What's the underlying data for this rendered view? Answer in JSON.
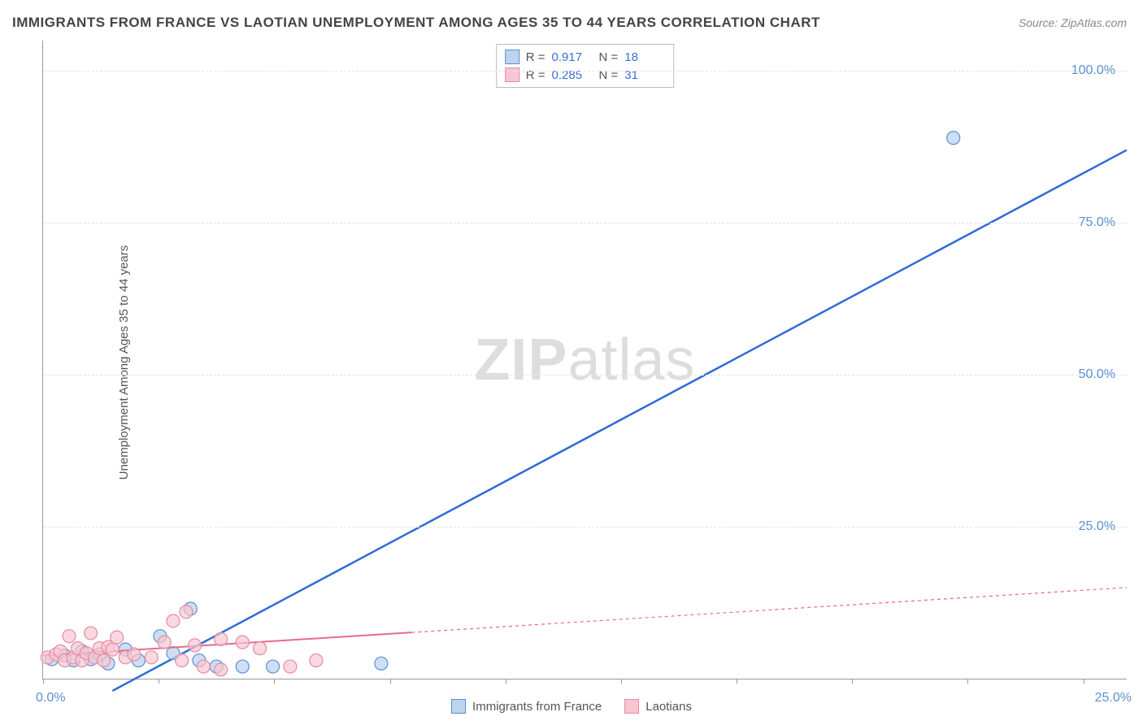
{
  "title": "IMMIGRANTS FROM FRANCE VS LAOTIAN UNEMPLOYMENT AMONG AGES 35 TO 44 YEARS CORRELATION CHART",
  "source": "Source: ZipAtlas.com",
  "ylabel": "Unemployment Among Ages 35 to 44 years",
  "watermark_bold": "ZIP",
  "watermark_rest": "atlas",
  "chart": {
    "type": "scatter-with-regression",
    "xlim": [
      0,
      25
    ],
    "ylim": [
      0,
      105
    ],
    "xtick_positions": [
      0,
      2.67,
      5.33,
      8,
      10.67,
      13.33,
      16,
      18.67,
      21.33,
      24
    ],
    "xtick_labels": {
      "0": "0.0%",
      "24": "25.0%"
    },
    "ytick_positions": [
      25,
      50,
      75,
      100
    ],
    "ytick_labels": [
      "25.0%",
      "50.0%",
      "75.0%",
      "100.0%"
    ],
    "grid_color": "#e5e5e5",
    "background_color": "#ffffff",
    "axis_color": "#999999",
    "series": [
      {
        "name": "Immigrants from France",
        "label": "Immigrants from France",
        "marker_fill": "#bcd4ee",
        "marker_stroke": "#5b8fd6",
        "marker_opacity": 0.75,
        "marker_radius": 8,
        "line_color": "#2e6bd6",
        "line_width": 2.5,
        "line_dash": "none",
        "R": "0.917",
        "N": "18",
        "regression": {
          "x1": 1.6,
          "y1": -2,
          "x2": 25,
          "y2": 87
        },
        "points": [
          {
            "x": 0.2,
            "y": 3.2
          },
          {
            "x": 0.5,
            "y": 3.8
          },
          {
            "x": 0.7,
            "y": 3.0
          },
          {
            "x": 0.9,
            "y": 4.5
          },
          {
            "x": 1.1,
            "y": 3.2
          },
          {
            "x": 1.3,
            "y": 4.0
          },
          {
            "x": 1.5,
            "y": 2.5
          },
          {
            "x": 1.9,
            "y": 4.8
          },
          {
            "x": 2.2,
            "y": 3.0
          },
          {
            "x": 2.7,
            "y": 7.0
          },
          {
            "x": 3.0,
            "y": 4.2
          },
          {
            "x": 3.4,
            "y": 11.5
          },
          {
            "x": 3.6,
            "y": 3.0
          },
          {
            "x": 4.0,
            "y": 2.0
          },
          {
            "x": 4.6,
            "y": 2.0
          },
          {
            "x": 5.3,
            "y": 2.0
          },
          {
            "x": 7.8,
            "y": 2.5
          },
          {
            "x": 21.0,
            "y": 89.0
          }
        ]
      },
      {
        "name": "Laotians",
        "label": "Laotians",
        "marker_fill": "#f6c7d2",
        "marker_stroke": "#e78aa3",
        "marker_opacity": 0.7,
        "marker_radius": 8,
        "line_color": "#e56b8a",
        "line_width": 2,
        "line_dash": "4,4",
        "solid_until_x": 8.5,
        "R": "0.285",
        "N": "31",
        "regression": {
          "x1": 0,
          "y1": 3.8,
          "x2": 25,
          "y2": 15
        },
        "points": [
          {
            "x": 0.1,
            "y": 3.5
          },
          {
            "x": 0.3,
            "y": 4.0
          },
          {
            "x": 0.4,
            "y": 4.5
          },
          {
            "x": 0.5,
            "y": 3.0
          },
          {
            "x": 0.6,
            "y": 7.0
          },
          {
            "x": 0.7,
            "y": 3.5
          },
          {
            "x": 0.8,
            "y": 5.0
          },
          {
            "x": 0.9,
            "y": 3.0
          },
          {
            "x": 1.0,
            "y": 4.2
          },
          {
            "x": 1.1,
            "y": 7.5
          },
          {
            "x": 1.2,
            "y": 3.5
          },
          {
            "x": 1.3,
            "y": 5.0
          },
          {
            "x": 1.4,
            "y": 3.0
          },
          {
            "x": 1.5,
            "y": 5.2
          },
          {
            "x": 1.6,
            "y": 4.8
          },
          {
            "x": 1.7,
            "y": 6.8
          },
          {
            "x": 1.9,
            "y": 3.5
          },
          {
            "x": 2.1,
            "y": 4.0
          },
          {
            "x": 2.5,
            "y": 3.5
          },
          {
            "x": 2.8,
            "y": 6.0
          },
          {
            "x": 3.0,
            "y": 9.5
          },
          {
            "x": 3.2,
            "y": 3.0
          },
          {
            "x": 3.3,
            "y": 11.0
          },
          {
            "x": 3.5,
            "y": 5.5
          },
          {
            "x": 3.7,
            "y": 2.0
          },
          {
            "x": 4.1,
            "y": 6.5
          },
          {
            "x": 4.1,
            "y": 1.5
          },
          {
            "x": 4.6,
            "y": 6.0
          },
          {
            "x": 5.0,
            "y": 5.0
          },
          {
            "x": 5.7,
            "y": 2.0
          },
          {
            "x": 6.3,
            "y": 3.0
          }
        ]
      }
    ]
  },
  "legend_bottom": [
    {
      "swatch": "blue",
      "label": "Immigrants from France"
    },
    {
      "swatch": "pink",
      "label": "Laotians"
    }
  ]
}
